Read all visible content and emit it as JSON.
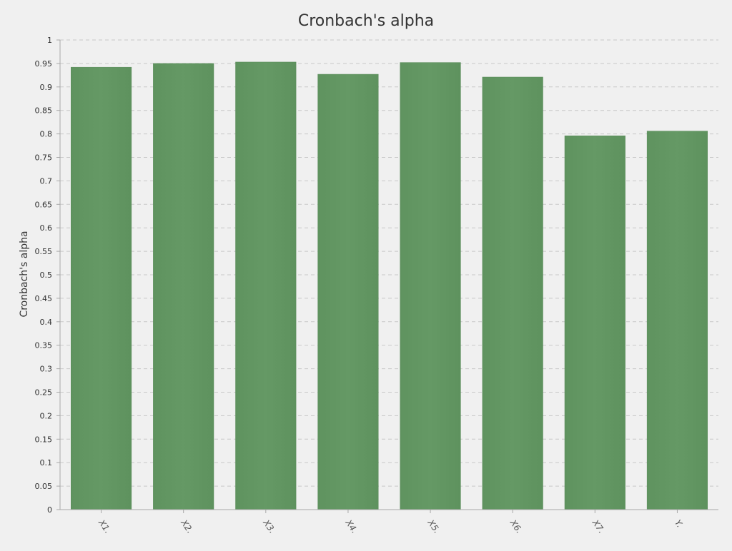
{
  "chart_data": {
    "type": "bar",
    "title": "Cronbach's alpha",
    "xlabel": "",
    "ylabel": "Cronbach's alpha",
    "categories": [
      "X1.",
      "X2.",
      "X3.",
      "X4.",
      "X5.",
      "X6.",
      "X7.",
      "Y."
    ],
    "values": [
      0.942,
      0.95,
      0.953,
      0.927,
      0.952,
      0.921,
      0.796,
      0.806
    ],
    "ylim": [
      0,
      1
    ],
    "ytick_step": 0.05,
    "grid": true,
    "legend": "none",
    "colors": {
      "bar": "#659965",
      "bar_edge": "#5a8c5a",
      "grid": "#c8c8c8",
      "axis": "#a8a8a8",
      "text": "#333333",
      "background": "#f0f0f0"
    }
  }
}
